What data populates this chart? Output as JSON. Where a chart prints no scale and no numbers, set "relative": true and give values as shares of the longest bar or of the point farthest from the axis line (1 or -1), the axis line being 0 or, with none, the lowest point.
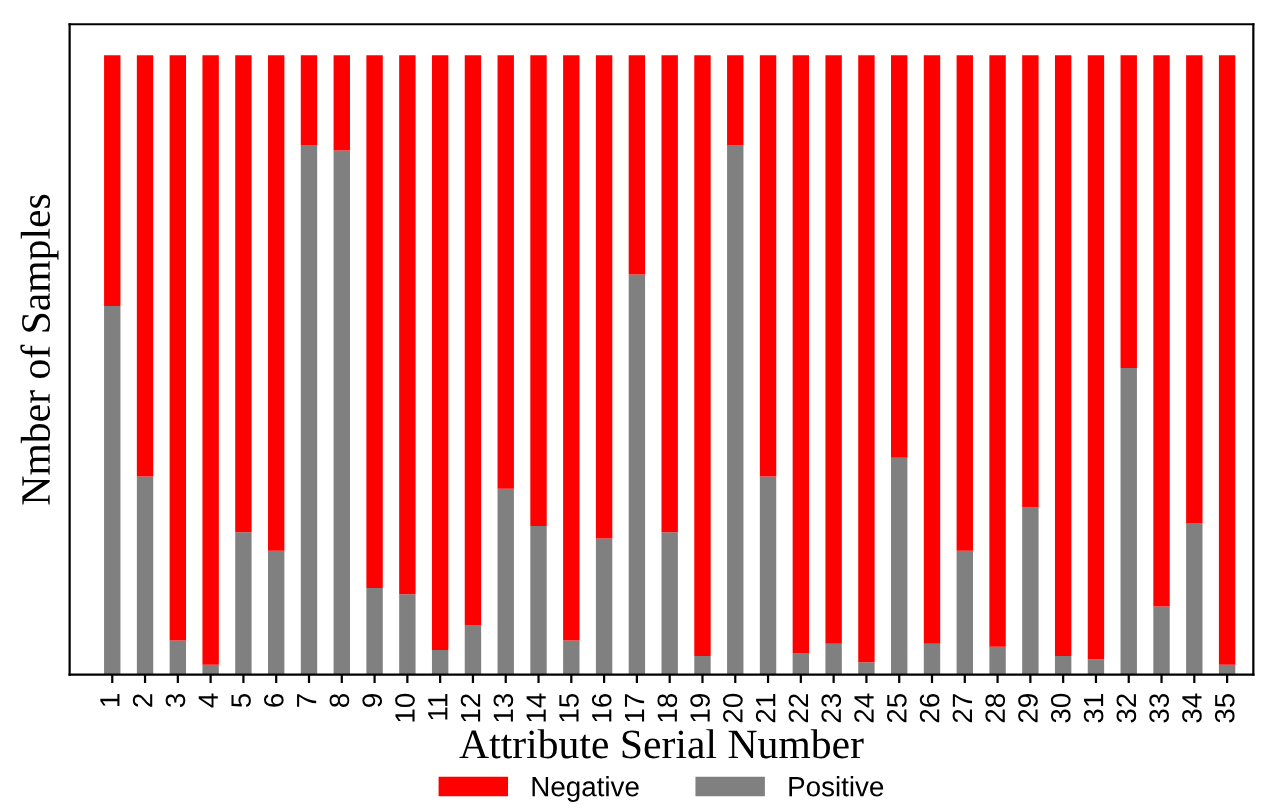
{
  "chart_data": {
    "type": "bar",
    "stacked": true,
    "relative": true,
    "xlabel": "Attribute Serial Number",
    "ylabel": "Nmber of Samples",
    "legend": "bottom",
    "categories": [
      "1",
      "2",
      "3",
      "4",
      "5",
      "6",
      "7",
      "8",
      "9",
      "10",
      "11",
      "12",
      "13",
      "14",
      "15",
      "16",
      "17",
      "18",
      "19",
      "20",
      "21",
      "22",
      "23",
      "24",
      "25",
      "26",
      "27",
      "28",
      "29",
      "30",
      "31",
      "32",
      "33",
      "34",
      "35"
    ],
    "series": [
      {
        "name": "Positive",
        "color": "#808080",
        "values": [
          0.595,
          0.32,
          0.055,
          0.016,
          0.23,
          0.2,
          0.855,
          0.846,
          0.14,
          0.13,
          0.04,
          0.08,
          0.3,
          0.24,
          0.055,
          0.22,
          0.646,
          0.23,
          0.03,
          0.855,
          0.32,
          0.035,
          0.05,
          0.02,
          0.35,
          0.05,
          0.2,
          0.045,
          0.27,
          0.03,
          0.025,
          0.495,
          0.11,
          0.245,
          0.016
        ]
      },
      {
        "name": "Negative",
        "color": "#ff0000",
        "values": [
          0.405,
          0.68,
          0.945,
          0.984,
          0.77,
          0.8,
          0.145,
          0.154,
          0.86,
          0.87,
          0.96,
          0.92,
          0.7,
          0.76,
          0.945,
          0.78,
          0.354,
          0.77,
          0.97,
          0.145,
          0.68,
          0.965,
          0.95,
          0.98,
          0.65,
          0.95,
          0.8,
          0.955,
          0.73,
          0.97,
          0.975,
          0.505,
          0.89,
          0.755,
          0.984
        ]
      }
    ]
  }
}
